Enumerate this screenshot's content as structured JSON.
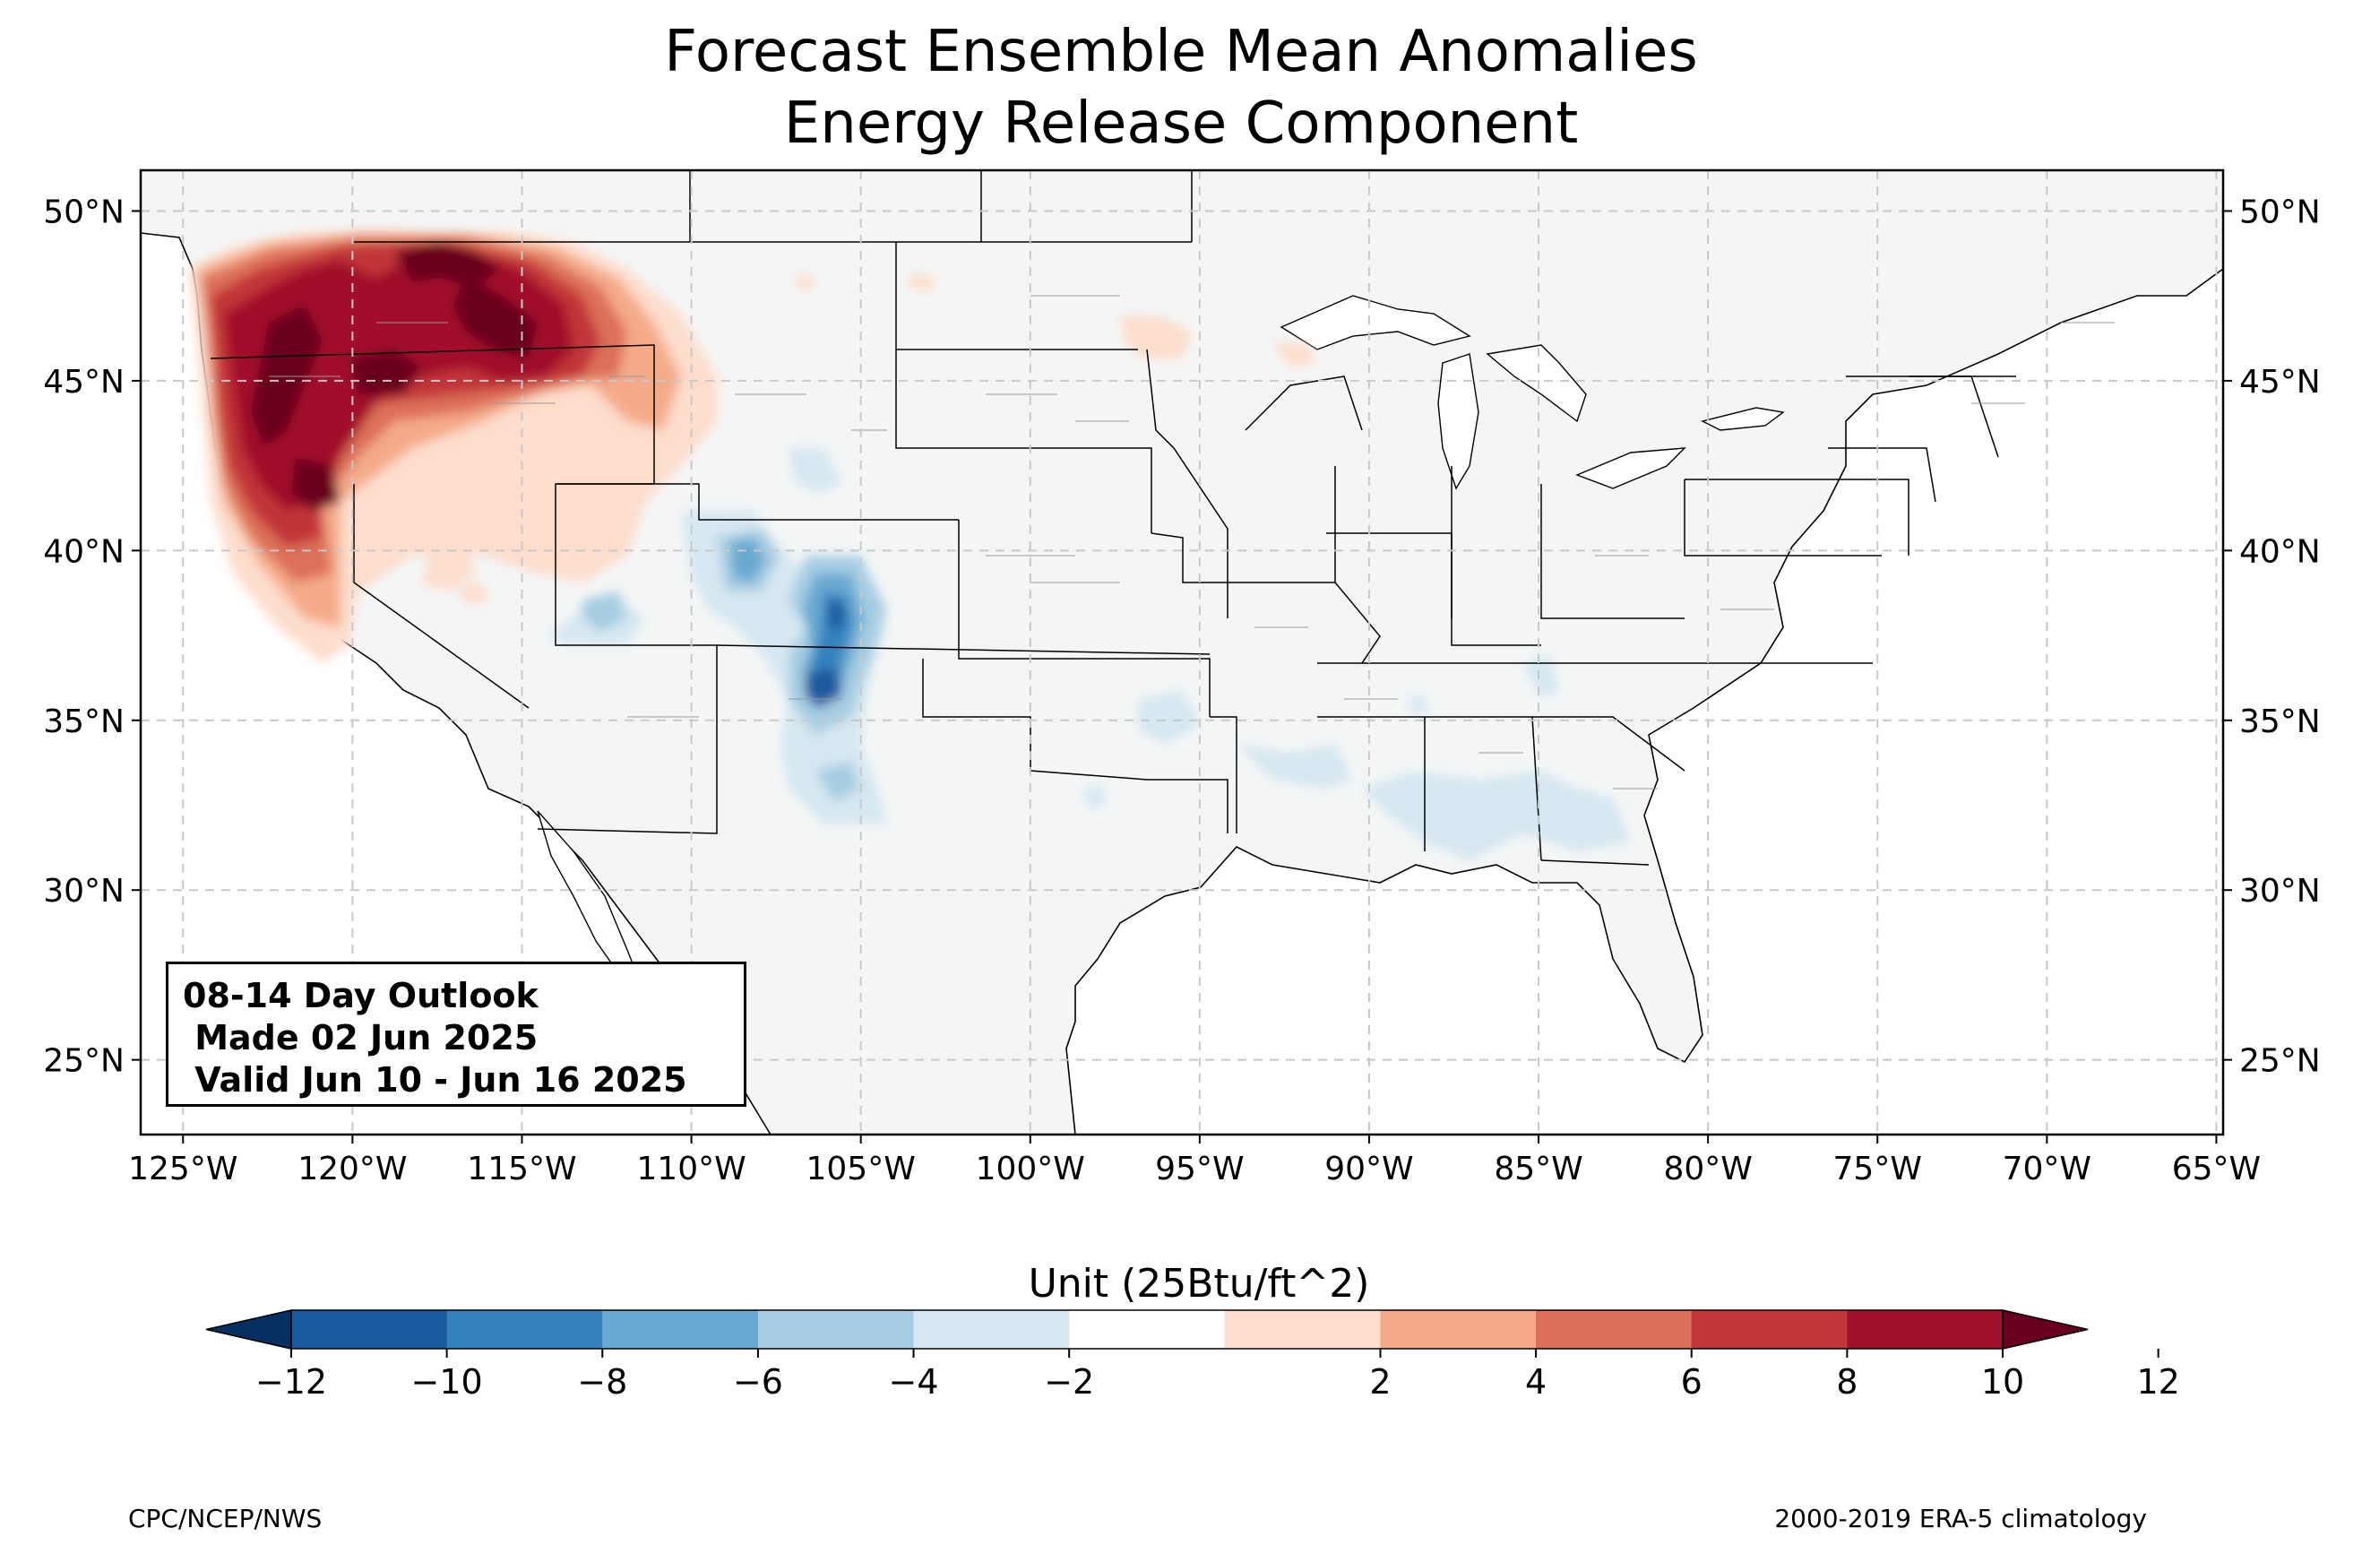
{
  "title": {
    "line1": "Forecast Ensemble Mean Anomalies",
    "line2": "Energy Release Component"
  },
  "map": {
    "lon_range": [
      -126.25,
      -64.8
    ],
    "lat_range": [
      22.8,
      51.2
    ],
    "lon_ticks": [
      -125,
      -120,
      -115,
      -110,
      -105,
      -100,
      -95,
      -90,
      -85,
      -80,
      -75,
      -70,
      -65
    ],
    "lon_tick_labels": [
      "125°W",
      "120°W",
      "115°W",
      "110°W",
      "105°W",
      "100°W",
      "95°W",
      "90°W",
      "85°W",
      "80°W",
      "75°W",
      "70°W",
      "65°W"
    ],
    "lat_ticks": [
      25,
      30,
      35,
      40,
      45,
      50
    ],
    "lat_tick_labels": [
      "25°N",
      "30°N",
      "35°N",
      "40°N",
      "45°N",
      "50°N"
    ],
    "grid": "dashed",
    "land_color": "#f4f6f6",
    "ocean_color": "#ffffff",
    "anomaly_regions": [
      {
        "name": "Pacific Northwest / Northern Rockies",
        "level": 12,
        "color": "#67001f"
      },
      {
        "name": "Northern California / Oregon",
        "level": 10,
        "color": "#b2182b"
      },
      {
        "name": "Southern Colorado / Northern New Mexico",
        "level": -10,
        "color": "#2166ac"
      },
      {
        "name": "Gulf Coast states",
        "level": -2,
        "color": "#d1e5f0"
      }
    ]
  },
  "annotation": {
    "line1": "08-14 Day Outlook",
    "line2": " Made 02 Jun 2025",
    "line3": " Valid Jun 10 - Jun 16 2025"
  },
  "colorbar": {
    "label": "Unit (25Btu/ft^2)",
    "ticks": [
      -12,
      -10,
      -8,
      -6,
      -4,
      -2,
      2,
      4,
      6,
      8,
      10,
      12
    ],
    "tick_labels": [
      "−12",
      "−10",
      "−8",
      "−6",
      "−4",
      "−2",
      "2",
      "4",
      "6",
      "8",
      "10",
      "12"
    ],
    "under_color": "#053061",
    "over_color": "#67001f",
    "colors": [
      "#1a5a9e",
      "#3582be",
      "#69a9d1",
      "#a6cde2",
      "#d6e7f1",
      "#ffffff",
      "#fdddcc",
      "#f4aa89",
      "#dc6f58",
      "#c13639",
      "#a1112b"
    ]
  },
  "credits": {
    "left": "CPC/NCEP/NWS",
    "right": "2000-2019 ERA-5 climatology"
  }
}
